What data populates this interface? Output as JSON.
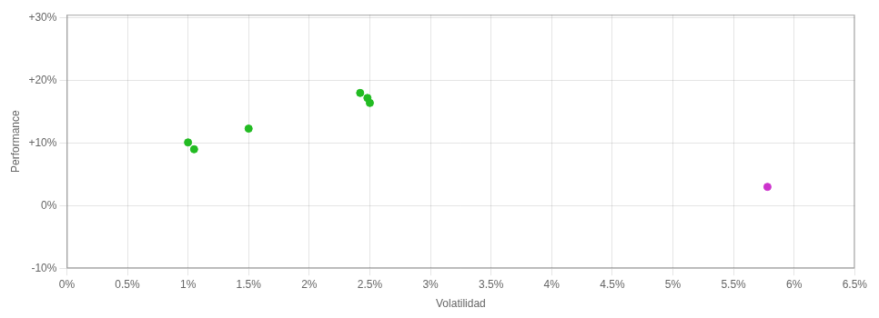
{
  "chart_data": {
    "type": "scatter",
    "xlabel": "Volatilidad",
    "ylabel": "Performance",
    "xlim": [
      0.0,
      0.065
    ],
    "ylim": [
      -0.1,
      0.305
    ],
    "xticks": [
      {
        "value": 0.0,
        "label": "0%"
      },
      {
        "value": 0.005,
        "label": "0.5%"
      },
      {
        "value": 0.01,
        "label": "1%"
      },
      {
        "value": 0.015,
        "label": "1.5%"
      },
      {
        "value": 0.02,
        "label": "2%"
      },
      {
        "value": 0.025,
        "label": "2.5%"
      },
      {
        "value": 0.03,
        "label": "3%"
      },
      {
        "value": 0.035,
        "label": "3.5%"
      },
      {
        "value": 0.04,
        "label": "4%"
      },
      {
        "value": 0.045,
        "label": "4.5%"
      },
      {
        "value": 0.05,
        "label": "5%"
      },
      {
        "value": 0.055,
        "label": "5.5%"
      },
      {
        "value": 0.06,
        "label": "6%"
      },
      {
        "value": 0.065,
        "label": "6.5%"
      }
    ],
    "yticks": [
      {
        "value": -0.1,
        "label": "-10%"
      },
      {
        "value": 0.0,
        "label": "0%"
      },
      {
        "value": 0.1,
        "label": "+10%"
      },
      {
        "value": 0.2,
        "label": "+20%"
      },
      {
        "value": 0.3,
        "label": "+30%"
      }
    ],
    "grid": true,
    "series": [
      {
        "color": "#22bb22",
        "x": [
          0.01,
          0.0105,
          0.015,
          0.0242,
          0.0248,
          0.025
        ],
        "values": [
          0.101,
          0.09,
          0.123,
          0.18,
          0.172,
          0.164
        ]
      },
      {
        "color": "#cc33cc",
        "x": [
          0.0578
        ],
        "values": [
          0.03
        ]
      }
    ]
  }
}
